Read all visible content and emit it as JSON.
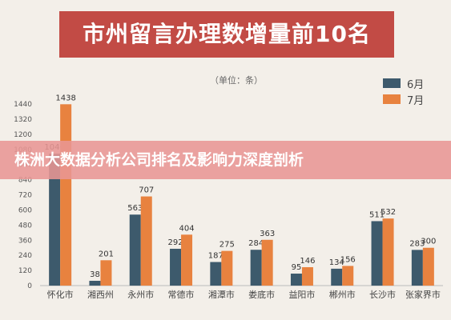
{
  "header": {
    "title": "市州留言办理数增量前10名"
  },
  "banner": {
    "text": "株洲大数据分析公司排名及影响力深度剖析"
  },
  "chart_data": {
    "type": "bar",
    "unit_note": "（单位：条）",
    "categories": [
      "怀化市",
      "湘西州",
      "永州市",
      "常德市",
      "湘潭市",
      "娄底市",
      "益阳市",
      "郴州市",
      "长沙市",
      "张家界市"
    ],
    "series": [
      {
        "name": "6月",
        "color": "#3d5a6c",
        "values": [
          1046,
          38,
          563,
          292,
          187,
          284,
          95,
          134,
          511,
          283
        ]
      },
      {
        "name": "7月",
        "color": "#e8823f",
        "values": [
          1438,
          201,
          707,
          404,
          275,
          363,
          146,
          156,
          532,
          300
        ]
      }
    ],
    "yticks": [
      0,
      120,
      240,
      360,
      480,
      600,
      720,
      840,
      960,
      1080,
      1200,
      1320,
      1440
    ],
    "ylim": [
      0,
      1440
    ],
    "legend_position": "top-right",
    "grid": false
  }
}
